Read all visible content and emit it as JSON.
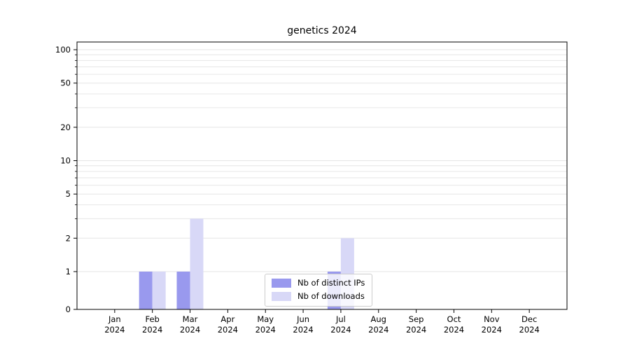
{
  "chart_data": {
    "type": "bar",
    "title": "genetics 2024",
    "categories": [
      "Jan 2024",
      "Feb 2024",
      "Mar 2024",
      "Apr 2024",
      "May 2024",
      "Jun 2024",
      "Jul 2024",
      "Aug 2024",
      "Sep 2024",
      "Oct 2024",
      "Nov 2024",
      "Dec 2024"
    ],
    "series": [
      {
        "name": "Nb of distinct IPs",
        "color": "#9999ee",
        "values": [
          0,
          1,
          1,
          0,
          0,
          0,
          1,
          0,
          0,
          0,
          0,
          0
        ]
      },
      {
        "name": "Nb of downloads",
        "color": "#d8d8f7",
        "values": [
          0,
          1,
          3,
          0,
          0,
          0,
          2,
          0,
          0,
          0,
          0,
          0
        ]
      }
    ],
    "xlabel": "",
    "ylabel": "",
    "yscale": "symlog",
    "yticks": [
      0,
      1,
      2,
      5,
      10,
      20,
      50,
      100
    ],
    "grid_values": [
      1,
      2,
      3,
      4,
      5,
      6,
      7,
      8,
      9,
      10,
      20,
      30,
      40,
      50,
      60,
      70,
      80,
      90,
      100
    ],
    "ylim": [
      0,
      120
    ],
    "grid": true,
    "legend_position": "lower center",
    "colors": {
      "grid_line": "#e6e6e6",
      "axis_line": "#000000",
      "background": "#ffffff"
    }
  }
}
